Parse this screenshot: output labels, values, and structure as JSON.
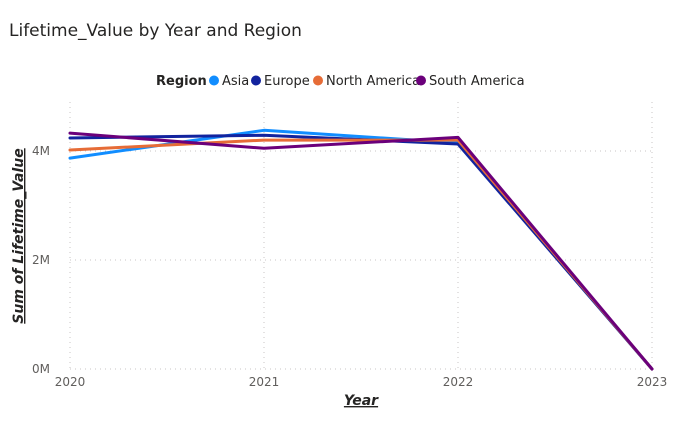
{
  "chart_data": {
    "type": "line",
    "title": "Lifetime_Value by Year and Region",
    "xlabel": "Year",
    "ylabel": "Sum of Lifetime_Value",
    "x": [
      "2020",
      "2021",
      "2022",
      "2023"
    ],
    "yticks": [
      "0M",
      "2M",
      "4M"
    ],
    "ytick_values": [
      0,
      2000000,
      4000000
    ],
    "ylim": [
      0,
      4900000
    ],
    "grid": true,
    "legend": {
      "title": "Region",
      "placement": "top-center"
    },
    "series": [
      {
        "name": "Asia",
        "color": "#118dff",
        "values": [
          3870000,
          4380000,
          4150000,
          0
        ]
      },
      {
        "name": "Europe",
        "color": "#12239e",
        "values": [
          4240000,
          4290000,
          4130000,
          0
        ]
      },
      {
        "name": "North America",
        "color": "#e66c37",
        "values": [
          4020000,
          4200000,
          4200000,
          0
        ]
      },
      {
        "name": "South America",
        "color": "#6b007b",
        "values": [
          4330000,
          4050000,
          4250000,
          0
        ]
      }
    ]
  }
}
